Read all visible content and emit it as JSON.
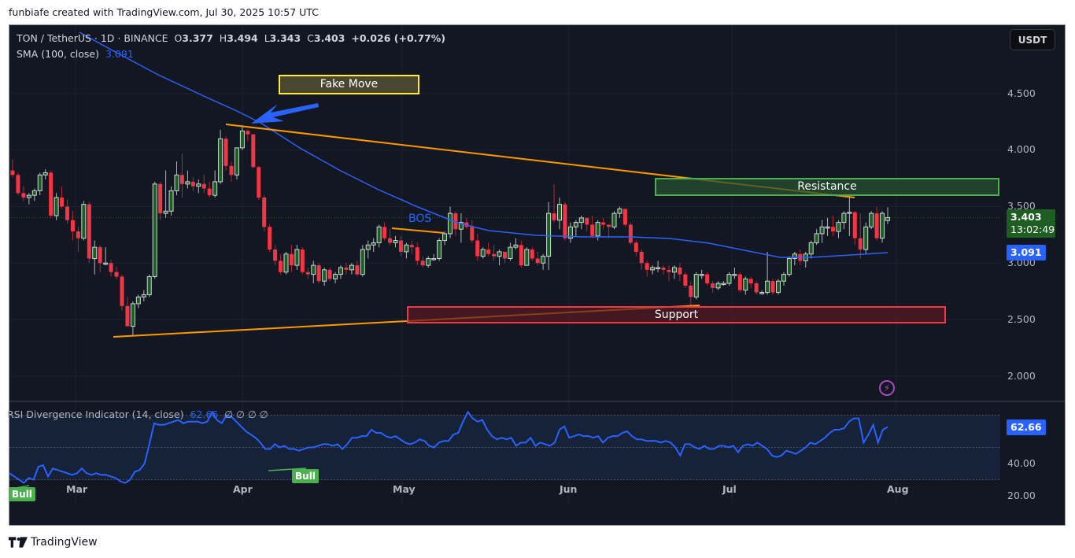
{
  "credit": "funbiafe created with TradingView.com, Jul 30, 2025 10:57 UTC",
  "header": {
    "symbol": "TON / TetherUS · 1D · BINANCE",
    "open_label": "O",
    "open": "3.377",
    "high_label": "H",
    "high": "3.494",
    "low_label": "L",
    "low": "3.343",
    "close_label": "C",
    "close": "3.403",
    "change": "+0.026 (+0.77%)",
    "sma_label": "SMA (100, close)",
    "sma_value": "3.091"
  },
  "currency_button": "USDT",
  "price_axis": [
    "4.500",
    "4.000",
    "3.500",
    "3.000",
    "2.500",
    "2.000"
  ],
  "price_tags": {
    "last_price": "3.403",
    "countdown": "13:02:49",
    "sma": "3.091"
  },
  "rsi": {
    "title": "RSI Divergence Indicator (14, close)",
    "value": "62.66",
    "extras": "∅ ∅ ∅ ∅",
    "axis": [
      "40.00",
      "20.00"
    ],
    "tag": "62.66",
    "signals": [
      "Bull",
      "Bull"
    ]
  },
  "annotations": {
    "fake_move": "Fake Move",
    "resistance": "Resistance",
    "support": "Support",
    "bos": "BOS"
  },
  "time_axis": [
    "Mar",
    "Apr",
    "May",
    "Jun",
    "Jul",
    "Aug"
  ],
  "footer_brand": "TradingView",
  "colors": {
    "background": "#131722",
    "up_candle": "#1b5e20",
    "up_border": "#d1d4dc",
    "down_candle": "#f23645",
    "sma": "#2962ff",
    "trendline": "#ff9800",
    "resistance": "#4caf50",
    "support": "#f23645",
    "fake_move": "#ffeb3b",
    "rsi_line": "#2962ff"
  },
  "chart_data": [
    {
      "type": "candlestick",
      "title": "TON / TetherUS · 1D · BINANCE",
      "xlabel": "",
      "ylabel": "USDT",
      "ylim": [
        1.8,
        4.8
      ],
      "x_ticks": [
        "Mar",
        "Apr",
        "May",
        "Jun",
        "Jul",
        "Aug"
      ],
      "y_ticks": [
        2.0,
        2.5,
        3.0,
        3.5,
        4.0,
        4.5
      ],
      "last": {
        "open": 3.377,
        "high": 3.494,
        "low": 3.343,
        "close": 3.403,
        "change": 0.026,
        "change_pct": 0.77
      },
      "ohlc": [
        [
          3.82,
          3.92,
          3.76,
          3.78
        ],
        [
          3.78,
          3.8,
          3.6,
          3.62
        ],
        [
          3.62,
          3.68,
          3.55,
          3.58
        ],
        [
          3.58,
          3.62,
          3.52,
          3.6
        ],
        [
          3.6,
          3.66,
          3.55,
          3.64
        ],
        [
          3.64,
          3.8,
          3.6,
          3.78
        ],
        [
          3.78,
          3.83,
          3.74,
          3.8
        ],
        [
          3.8,
          3.82,
          3.4,
          3.42
        ],
        [
          3.42,
          3.62,
          3.38,
          3.58
        ],
        [
          3.58,
          3.68,
          3.48,
          3.5
        ],
        [
          3.5,
          3.56,
          3.35,
          3.38
        ],
        [
          3.38,
          3.46,
          3.2,
          3.28
        ],
        [
          3.28,
          3.32,
          3.1,
          3.22
        ],
        [
          3.22,
          3.55,
          3.2,
          3.52
        ],
        [
          3.52,
          3.54,
          3.0,
          3.04
        ],
        [
          3.04,
          3.2,
          2.9,
          3.14
        ],
        [
          3.14,
          3.16,
          2.92,
          3.0
        ],
        [
          3.0,
          3.14,
          2.98,
          3.0
        ],
        [
          3.0,
          3.03,
          2.88,
          2.92
        ],
        [
          2.92,
          2.97,
          2.86,
          2.88
        ],
        [
          2.88,
          2.9,
          2.58,
          2.62
        ],
        [
          2.62,
          2.7,
          2.48,
          2.44
        ],
        [
          2.44,
          2.66,
          2.36,
          2.64
        ],
        [
          2.64,
          2.72,
          2.6,
          2.7
        ],
        [
          2.7,
          2.76,
          2.66,
          2.72
        ],
        [
          2.72,
          2.9,
          2.7,
          2.88
        ],
        [
          2.88,
          3.72,
          2.86,
          3.7
        ],
        [
          3.7,
          3.72,
          3.38,
          3.44
        ],
        [
          3.44,
          3.82,
          3.4,
          3.46
        ],
        [
          3.46,
          3.68,
          3.42,
          3.64
        ],
        [
          3.64,
          3.9,
          3.6,
          3.78
        ],
        [
          3.78,
          3.97,
          3.58,
          3.7
        ],
        [
          3.7,
          3.82,
          3.66,
          3.72
        ],
        [
          3.72,
          3.76,
          3.64,
          3.68
        ],
        [
          3.68,
          3.74,
          3.62,
          3.7
        ],
        [
          3.7,
          3.78,
          3.62,
          3.66
        ],
        [
          3.66,
          3.72,
          3.58,
          3.6
        ],
        [
          3.6,
          3.82,
          3.58,
          3.72
        ],
        [
          3.72,
          4.18,
          3.7,
          4.1
        ],
        [
          4.1,
          4.12,
          3.82,
          3.86
        ],
        [
          3.86,
          3.9,
          3.72,
          3.78
        ],
        [
          3.78,
          4.02,
          3.74,
          4.02
        ],
        [
          4.02,
          4.22,
          4.0,
          4.17
        ],
        [
          4.17,
          4.18,
          4.08,
          4.14
        ],
        [
          4.14,
          4.12,
          3.84,
          3.85
        ],
        [
          3.85,
          3.86,
          3.56,
          3.58
        ],
        [
          3.58,
          3.6,
          3.28,
          3.32
        ],
        [
          3.32,
          3.34,
          3.1,
          3.12
        ],
        [
          3.12,
          3.16,
          2.98,
          3.02
        ],
        [
          3.02,
          3.08,
          2.9,
          2.92
        ],
        [
          2.92,
          3.1,
          2.9,
          3.08
        ],
        [
          3.08,
          3.16,
          2.92,
          2.98
        ],
        [
          2.98,
          3.16,
          2.94,
          3.12
        ],
        [
          3.12,
          3.14,
          2.9,
          2.92
        ],
        [
          2.92,
          2.96,
          2.86,
          2.9
        ],
        [
          2.9,
          3.02,
          2.82,
          2.98
        ],
        [
          2.98,
          3.0,
          2.82,
          2.84
        ],
        [
          2.84,
          2.96,
          2.8,
          2.94
        ],
        [
          2.94,
          2.96,
          2.84,
          2.86
        ],
        [
          2.86,
          2.92,
          2.82,
          2.9
        ],
        [
          2.9,
          2.98,
          2.86,
          2.96
        ],
        [
          2.96,
          3.0,
          2.9,
          2.94
        ],
        [
          2.94,
          3.0,
          2.9,
          2.98
        ],
        [
          2.98,
          3.02,
          2.88,
          2.9
        ],
        [
          2.9,
          3.16,
          2.88,
          3.12
        ],
        [
          3.12,
          3.2,
          3.04,
          3.16
        ],
        [
          3.16,
          3.22,
          3.1,
          3.18
        ],
        [
          3.18,
          3.34,
          3.14,
          3.32
        ],
        [
          3.32,
          3.36,
          3.2,
          3.22
        ],
        [
          3.22,
          3.3,
          3.16,
          3.18
        ],
        [
          3.18,
          3.24,
          3.14,
          3.2
        ],
        [
          3.2,
          3.24,
          3.06,
          3.1
        ],
        [
          3.1,
          3.18,
          3.04,
          3.16
        ],
        [
          3.16,
          3.2,
          3.08,
          3.14
        ],
        [
          3.14,
          3.18,
          2.98,
          3.02
        ],
        [
          3.02,
          3.06,
          2.96,
          2.98
        ],
        [
          2.98,
          3.06,
          2.96,
          3.04
        ],
        [
          3.04,
          3.08,
          3.02,
          3.04
        ],
        [
          3.04,
          3.22,
          3.02,
          3.2
        ],
        [
          3.2,
          3.28,
          3.16,
          3.26
        ],
        [
          3.26,
          3.5,
          3.22,
          3.44
        ],
        [
          3.44,
          3.46,
          3.24,
          3.3
        ],
        [
          3.3,
          3.44,
          3.18,
          3.36
        ],
        [
          3.36,
          3.4,
          3.3,
          3.32
        ],
        [
          3.32,
          3.38,
          3.18,
          3.2
        ],
        [
          3.2,
          3.26,
          3.02,
          3.06
        ],
        [
          3.06,
          3.14,
          3.04,
          3.12
        ],
        [
          3.12,
          3.18,
          3.06,
          3.08
        ],
        [
          3.08,
          3.16,
          3.02,
          3.06
        ],
        [
          3.06,
          3.12,
          2.98,
          3.1
        ],
        [
          3.1,
          3.1,
          3.0,
          3.04
        ],
        [
          3.04,
          3.18,
          3.02,
          3.14
        ],
        [
          3.14,
          3.22,
          3.12,
          3.16
        ],
        [
          3.16,
          3.2,
          2.96,
          2.98
        ],
        [
          2.98,
          3.14,
          2.98,
          3.12
        ],
        [
          3.12,
          3.14,
          3.02,
          3.04
        ],
        [
          3.04,
          3.1,
          2.98,
          3.0
        ],
        [
          3.0,
          3.08,
          2.94,
          3.06
        ],
        [
          3.06,
          3.54,
          2.94,
          3.44
        ],
        [
          3.44,
          3.7,
          3.36,
          3.38
        ],
        [
          3.38,
          3.58,
          3.3,
          3.52
        ],
        [
          3.52,
          3.54,
          3.2,
          3.22
        ],
        [
          3.22,
          3.36,
          3.18,
          3.32
        ],
        [
          3.32,
          3.38,
          3.24,
          3.36
        ],
        [
          3.36,
          3.42,
          3.3,
          3.4
        ],
        [
          3.4,
          3.4,
          3.28,
          3.34
        ],
        [
          3.34,
          3.42,
          3.22,
          3.24
        ],
        [
          3.24,
          3.38,
          3.2,
          3.36
        ],
        [
          3.36,
          3.4,
          3.3,
          3.34
        ],
        [
          3.34,
          3.34,
          3.22,
          3.32
        ],
        [
          3.32,
          3.46,
          3.3,
          3.44
        ],
        [
          3.44,
          3.5,
          3.4,
          3.48
        ],
        [
          3.48,
          3.48,
          3.32,
          3.34
        ],
        [
          3.34,
          3.36,
          3.16,
          3.18
        ],
        [
          3.18,
          3.2,
          3.06,
          3.1
        ],
        [
          3.1,
          3.12,
          2.94,
          3.0
        ],
        [
          3.0,
          3.02,
          2.88,
          2.94
        ],
        [
          2.94,
          2.98,
          2.9,
          2.96
        ],
        [
          2.96,
          3.02,
          2.92,
          2.96
        ],
        [
          2.96,
          2.98,
          2.9,
          2.94
        ],
        [
          2.94,
          2.98,
          2.84,
          2.92
        ],
        [
          2.92,
          2.98,
          2.86,
          2.96
        ],
        [
          2.96,
          3.0,
          2.84,
          2.9
        ],
        [
          2.9,
          2.92,
          2.78,
          2.8
        ],
        [
          2.8,
          2.84,
          2.62,
          2.7
        ],
        [
          2.7,
          2.92,
          2.68,
          2.9
        ],
        [
          2.9,
          2.94,
          2.86,
          2.9
        ],
        [
          2.9,
          2.92,
          2.8,
          2.82
        ],
        [
          2.82,
          2.84,
          2.74,
          2.78
        ],
        [
          2.78,
          2.84,
          2.76,
          2.82
        ],
        [
          2.82,
          2.84,
          2.8,
          2.82
        ],
        [
          2.82,
          2.92,
          2.8,
          2.9
        ],
        [
          2.9,
          2.96,
          2.86,
          2.9
        ],
        [
          2.9,
          2.92,
          2.74,
          2.76
        ],
        [
          2.76,
          2.88,
          2.72,
          2.86
        ],
        [
          2.86,
          2.88,
          2.78,
          2.82
        ],
        [
          2.82,
          2.84,
          2.72,
          2.74
        ],
        [
          2.74,
          2.76,
          2.72,
          2.74
        ],
        [
          2.74,
          3.1,
          2.72,
          2.84
        ],
        [
          2.84,
          2.86,
          2.72,
          2.74
        ],
        [
          2.74,
          2.86,
          2.72,
          2.84
        ],
        [
          2.84,
          2.92,
          2.8,
          2.9
        ],
        [
          2.9,
          3.06,
          2.88,
          3.04
        ],
        [
          3.04,
          3.1,
          2.98,
          3.08
        ],
        [
          3.08,
          3.12,
          2.98,
          3.02
        ],
        [
          3.02,
          3.1,
          2.96,
          3.08
        ],
        [
          3.08,
          3.2,
          3.04,
          3.18
        ],
        [
          3.18,
          3.3,
          3.16,
          3.26
        ],
        [
          3.26,
          3.38,
          3.18,
          3.32
        ],
        [
          3.32,
          3.4,
          3.24,
          3.32
        ],
        [
          3.32,
          3.42,
          3.24,
          3.28
        ],
        [
          3.28,
          3.38,
          3.22,
          3.36
        ],
        [
          3.36,
          3.46,
          3.3,
          3.44
        ],
        [
          3.44,
          3.6,
          3.24,
          3.45
        ],
        [
          3.45,
          3.46,
          3.16,
          3.22
        ],
        [
          3.22,
          3.44,
          3.04,
          3.12
        ],
        [
          3.12,
          3.36,
          3.08,
          3.32
        ],
        [
          3.32,
          3.46,
          3.3,
          3.44
        ],
        [
          3.44,
          3.5,
          3.2,
          3.22
        ],
        [
          3.22,
          3.46,
          3.18,
          3.44
        ],
        [
          3.377,
          3.494,
          3.343,
          3.403
        ]
      ],
      "series": [
        {
          "name": "SMA (100, close)",
          "last": 3.091
        },
        {
          "name": "Descending trendline",
          "points": [
            [
              286,
              4.23
            ],
            [
              1085,
              3.59
            ]
          ]
        },
        {
          "name": "Ascending trendline",
          "points": [
            [
              143,
              2.36
            ],
            [
              888,
              2.62
            ]
          ]
        }
      ],
      "zones": [
        {
          "label": "Resistance",
          "range": [
            3.58,
            3.76
          ]
        },
        {
          "label": "Support",
          "range": [
            2.48,
            2.64
          ]
        }
      ],
      "annotations_text": [
        "Fake Move",
        "BOS",
        "Resistance",
        "Support"
      ]
    },
    {
      "type": "line",
      "title": "RSI Divergence Indicator (14, close)",
      "ylim": [
        10,
        80
      ],
      "y_ticks": [
        20,
        40
      ],
      "bands": [
        30,
        50,
        70
      ],
      "last": 62.66,
      "values": [
        34,
        32,
        30,
        28,
        31,
        30,
        38,
        39,
        32,
        37,
        36,
        35,
        34,
        33,
        34,
        37,
        34,
        33,
        34,
        33,
        33,
        32,
        31,
        29,
        28,
        30,
        35,
        36,
        40,
        52,
        65,
        64,
        64,
        65,
        66,
        67,
        65,
        66,
        66,
        66,
        65,
        66,
        72,
        67,
        65,
        70,
        69,
        66,
        63,
        60,
        58,
        56,
        53,
        49,
        49,
        52,
        50,
        51,
        49,
        49,
        48,
        49,
        50,
        50,
        51,
        52,
        52,
        51,
        52,
        49,
        52,
        56,
        56,
        57,
        57,
        61,
        59,
        59,
        57,
        56,
        57,
        55,
        53,
        52,
        53,
        55,
        54,
        51,
        50,
        53,
        54,
        54,
        58,
        59,
        66,
        72,
        68,
        66,
        67,
        61,
        57,
        55,
        56,
        55,
        56,
        51,
        53,
        53,
        56,
        51,
        53,
        52,
        51,
        53,
        61,
        63,
        56,
        57,
        58,
        57,
        57,
        56,
        57,
        53,
        56,
        57,
        57,
        59,
        60,
        57,
        55,
        55,
        54,
        54,
        54,
        53,
        54,
        53,
        50,
        45,
        52,
        52,
        50,
        49,
        51,
        49,
        49,
        51,
        51,
        50,
        51,
        47,
        51,
        52,
        51,
        53,
        51,
        49,
        45,
        44,
        45,
        48,
        47,
        46,
        48,
        50,
        53,
        52,
        54,
        56,
        59,
        61,
        61,
        62,
        66,
        68,
        68,
        53,
        58,
        64,
        53,
        61,
        62.66
      ]
    }
  ]
}
